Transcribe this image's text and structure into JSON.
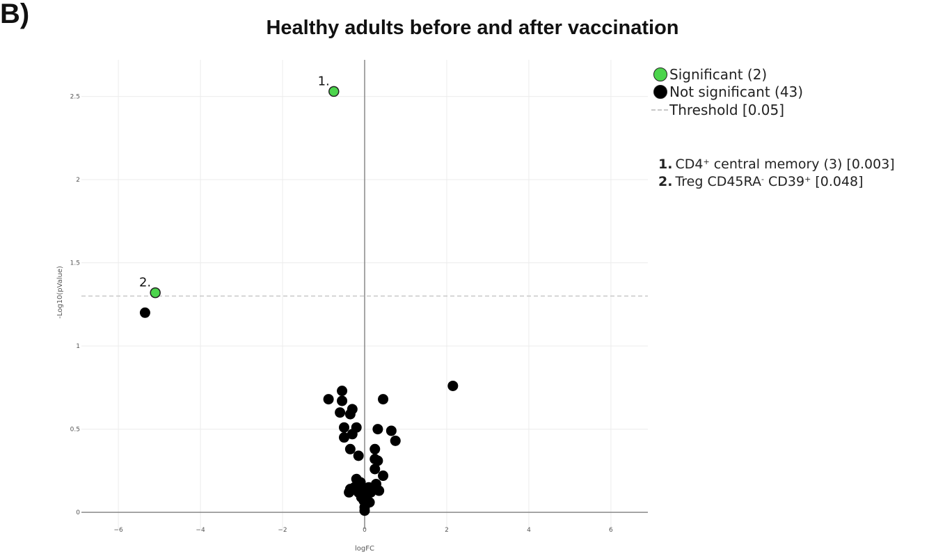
{
  "panel_label": "B)",
  "chart_data": {
    "type": "scatter",
    "title": "Healthy adults before and after vaccination",
    "xlabel": "logFC",
    "ylabel": "-Log10(pValue)",
    "xlim": [
      -6.9,
      6.9
    ],
    "ylim": [
      -0.1,
      2.72
    ],
    "x_ticks": [
      -6,
      -4,
      -2,
      0,
      2,
      4,
      6
    ],
    "x_tick_labels": [
      "−6",
      "−4",
      "−2",
      "0",
      "2",
      "4",
      "6"
    ],
    "y_ticks": [
      0,
      0.5,
      1,
      1.5,
      2,
      2.5
    ],
    "y_tick_labels": [
      "0",
      "0.5",
      "1",
      "1.5",
      "2",
      "2.5"
    ],
    "grid": true,
    "threshold": 1.3,
    "colors": {
      "significant": "#4cd44c",
      "not_significant": "#000000",
      "threshold": "#c8c8c8",
      "zeroline": "#888888",
      "grid": "#ececec"
    },
    "series": [
      {
        "name": "Significant (2)",
        "points": [
          {
            "x": -0.75,
            "y": 2.53,
            "label": "1."
          },
          {
            "x": -5.1,
            "y": 1.32,
            "label": "2."
          }
        ]
      },
      {
        "name": "Not significant (43)",
        "points": [
          {
            "x": -5.35,
            "y": 1.2
          },
          {
            "x": 2.15,
            "y": 0.76
          },
          {
            "x": -0.55,
            "y": 0.73
          },
          {
            "x": -0.88,
            "y": 0.68
          },
          {
            "x": -0.55,
            "y": 0.67
          },
          {
            "x": 0.45,
            "y": 0.68
          },
          {
            "x": -0.3,
            "y": 0.62
          },
          {
            "x": -0.6,
            "y": 0.6
          },
          {
            "x": -0.35,
            "y": 0.59
          },
          {
            "x": -0.5,
            "y": 0.51
          },
          {
            "x": -0.2,
            "y": 0.51
          },
          {
            "x": 0.32,
            "y": 0.5
          },
          {
            "x": 0.65,
            "y": 0.49
          },
          {
            "x": -0.3,
            "y": 0.47
          },
          {
            "x": -0.5,
            "y": 0.45
          },
          {
            "x": 0.75,
            "y": 0.43
          },
          {
            "x": -0.35,
            "y": 0.38
          },
          {
            "x": 0.25,
            "y": 0.38
          },
          {
            "x": -0.15,
            "y": 0.34
          },
          {
            "x": 0.25,
            "y": 0.32
          },
          {
            "x": 0.32,
            "y": 0.31
          },
          {
            "x": 0.25,
            "y": 0.26
          },
          {
            "x": 0.45,
            "y": 0.22
          },
          {
            "x": -0.2,
            "y": 0.2
          },
          {
            "x": -0.1,
            "y": 0.18
          },
          {
            "x": 0.28,
            "y": 0.17
          },
          {
            "x": -0.25,
            "y": 0.15
          },
          {
            "x": -0.35,
            "y": 0.14
          },
          {
            "x": 0.1,
            "y": 0.15
          },
          {
            "x": 0.3,
            "y": 0.14
          },
          {
            "x": -0.05,
            "y": 0.13
          },
          {
            "x": 0.15,
            "y": 0.12
          },
          {
            "x": -0.15,
            "y": 0.12
          },
          {
            "x": 0.35,
            "y": 0.13
          },
          {
            "x": -0.38,
            "y": 0.12
          },
          {
            "x": 0.0,
            "y": 0.1
          },
          {
            "x": -0.08,
            "y": 0.09
          },
          {
            "x": 0.05,
            "y": 0.08
          },
          {
            "x": -0.02,
            "y": 0.07
          },
          {
            "x": 0.12,
            "y": 0.06
          },
          {
            "x": 0.02,
            "y": 0.05
          },
          {
            "x": 0.0,
            "y": 0.03
          },
          {
            "x": 0.0,
            "y": 0.01
          }
        ]
      }
    ],
    "legend": {
      "placement": "top-right",
      "items": [
        {
          "label": "Significant (2)",
          "icon": "green-circle-icon"
        },
        {
          "label": "Not significant (43)",
          "icon": "black-circle-icon"
        },
        {
          "label": "Threshold [0.05]",
          "icon": "dashed-line-icon"
        }
      ]
    },
    "annotations": [
      {
        "num": "1.",
        "prefix": "CD4",
        "sup1": "+",
        "rest": " central memory (3) [0.003]"
      },
      {
        "num": "2.",
        "prefix": "Treg CD45RA",
        "sup1": "-",
        "mid": " CD39",
        "sup2": "+",
        "rest": " [0.048]"
      }
    ]
  }
}
